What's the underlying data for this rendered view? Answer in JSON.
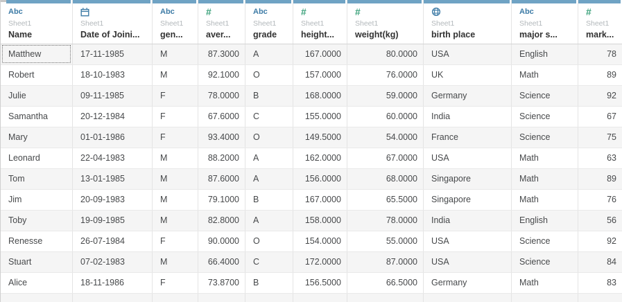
{
  "table": {
    "source_name": "Sheet1",
    "columns": [
      {
        "icon": "abc",
        "icon_label": "Abc",
        "source": "Sheet1",
        "label": "Name",
        "align": "left"
      },
      {
        "icon": "calendar",
        "icon_label": "",
        "source": "Sheet1",
        "label": "Date of Joini...",
        "align": "left"
      },
      {
        "icon": "abc",
        "icon_label": "Abc",
        "source": "Sheet1",
        "label": "gen...",
        "align": "left"
      },
      {
        "icon": "hash",
        "icon_label": "#",
        "source": "Sheet1",
        "label": "aver...",
        "align": "right"
      },
      {
        "icon": "abc",
        "icon_label": "Abc",
        "source": "Sheet1",
        "label": "grade",
        "align": "left"
      },
      {
        "icon": "hash",
        "icon_label": "#",
        "source": "Sheet1",
        "label": "height...",
        "align": "right"
      },
      {
        "icon": "hash",
        "icon_label": "#",
        "source": "Sheet1",
        "label": "weight(kg)",
        "align": "right"
      },
      {
        "icon": "globe",
        "icon_label": "",
        "source": "Sheet1",
        "label": "birth place",
        "align": "left"
      },
      {
        "icon": "abc",
        "icon_label": "Abc",
        "source": "Sheet1",
        "label": "major s...",
        "align": "left"
      },
      {
        "icon": "hash",
        "icon_label": "#",
        "source": "Sheet1",
        "label": "mark...",
        "align": "right"
      }
    ],
    "rows": [
      [
        "Matthew",
        "17-11-1985",
        "M",
        "87.3000",
        "A",
        "167.0000",
        "80.0000",
        "USA",
        "English",
        "78"
      ],
      [
        "Robert",
        "18-10-1983",
        "M",
        "92.1000",
        "O",
        "157.0000",
        "76.0000",
        "UK",
        "Math",
        "89"
      ],
      [
        "Julie",
        "09-11-1985",
        "F",
        "78.0000",
        "B",
        "168.0000",
        "59.0000",
        "Germany",
        "Science",
        "92"
      ],
      [
        "Samantha",
        "20-12-1984",
        "F",
        "67.6000",
        "C",
        "155.0000",
        "60.0000",
        "India",
        "Science",
        "67"
      ],
      [
        "Mary",
        "01-01-1986",
        "F",
        "93.4000",
        "O",
        "149.5000",
        "54.0000",
        "France",
        "Science",
        "75"
      ],
      [
        "Leonard",
        "22-04-1983",
        "M",
        "88.2000",
        "A",
        "162.0000",
        "67.0000",
        "USA",
        "Math",
        "63"
      ],
      [
        "Tom",
        "13-01-1985",
        "M",
        "87.6000",
        "A",
        "156.0000",
        "68.0000",
        "Singapore",
        "Math",
        "89"
      ],
      [
        "Jim",
        "20-09-1983",
        "M",
        "79.1000",
        "B",
        "167.0000",
        "65.5000",
        "Singapore",
        "Math",
        "76"
      ],
      [
        "Toby",
        "19-09-1985",
        "M",
        "82.8000",
        "A",
        "158.0000",
        "78.0000",
        "India",
        "English",
        "56"
      ],
      [
        "Renesse",
        "26-07-1984",
        "F",
        "90.0000",
        "O",
        "154.0000",
        "55.0000",
        "USA",
        "Science",
        "92"
      ],
      [
        "Stuart",
        "07-02-1983",
        "M",
        "66.4000",
        "C",
        "172.0000",
        "87.0000",
        "USA",
        "Science",
        "84"
      ],
      [
        "Alice",
        "18-11-1986",
        "F",
        "73.8700",
        "B",
        "156.5000",
        "66.5000",
        "Germany",
        "Math",
        "83"
      ]
    ],
    "focused_cell": {
      "row": 0,
      "col": 0
    }
  },
  "colors": {
    "header_accent": "#6fa3c4",
    "dimension_blue": "#3d7ba6",
    "measure_green": "#3fa37d",
    "source_gray": "#b3b8bb",
    "stripe_gray": "#f5f5f5"
  }
}
